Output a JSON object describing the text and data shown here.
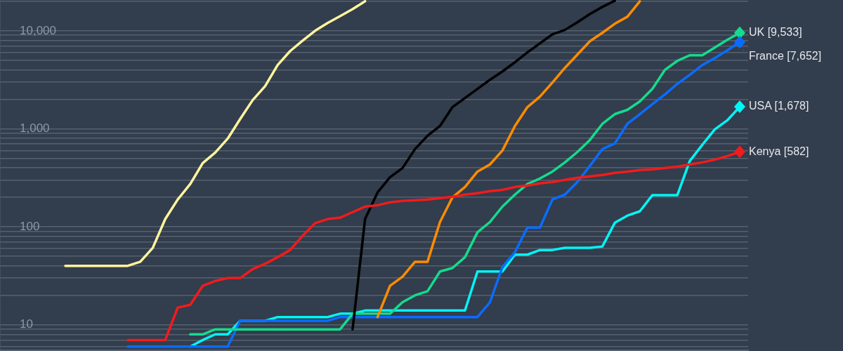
{
  "chart_data": {
    "type": "line",
    "log": true,
    "grid": "y",
    "tick_labels": "y",
    "line_style": "solid",
    "categories": [
      null,
      null,
      null,
      null,
      null,
      null,
      null,
      null,
      null,
      null,
      null,
      null,
      null,
      null,
      null,
      null,
      null,
      null,
      null,
      null,
      null,
      null,
      null,
      null,
      null,
      null,
      null,
      null,
      null,
      null,
      null,
      null,
      null,
      null,
      null,
      null,
      null,
      null,
      null,
      null,
      null,
      null,
      null,
      null,
      null,
      null,
      null,
      null,
      null,
      null,
      null,
      null,
      null,
      null,
      null
    ],
    "ylim": [
      5.5,
      20600
    ],
    "yticks": [
      {
        "value": 6,
        "label": null
      },
      {
        "value": 7,
        "label": null
      },
      {
        "value": 8,
        "label": null
      },
      {
        "value": 9,
        "label": null
      },
      10,
      {
        "value": 20,
        "label": null
      },
      {
        "value": 30,
        "label": null
      },
      {
        "value": 40,
        "label": null
      },
      {
        "value": 50,
        "label": null
      },
      {
        "value": 60,
        "label": null
      },
      {
        "value": 70,
        "label": null
      },
      {
        "value": 80,
        "label": null
      },
      {
        "value": 90,
        "label": null
      },
      100,
      {
        "value": 200,
        "label": null
      },
      {
        "value": 300,
        "label": null
      },
      {
        "value": 400,
        "label": null
      },
      {
        "value": 500,
        "label": null
      },
      {
        "value": 600,
        "label": null
      },
      {
        "value": 700,
        "label": null
      },
      {
        "value": 800,
        "label": null
      },
      {
        "value": 900,
        "label": null
      },
      {
        "value": 1000,
        "label": "1,000"
      },
      {
        "value": 2000,
        "label": null
      },
      {
        "value": 3000,
        "label": null
      },
      {
        "value": 4000,
        "label": null
      },
      {
        "value": 5000,
        "label": null
      },
      {
        "value": 6000,
        "label": null
      },
      {
        "value": 7000,
        "label": null
      },
      {
        "value": 8000,
        "label": null
      },
      {
        "value": 9000,
        "label": null
      },
      {
        "value": 10000,
        "label": "10,000"
      },
      {
        "value": 20000,
        "label": null
      }
    ],
    "series": [
      {
        "color": "#fff59d",
        "values": [
          40,
          40,
          40,
          40,
          40,
          40,
          44,
          61,
          120,
          190,
          273,
          446,
          571,
          794,
          1260,
          1960,
          2730,
          4470,
          6210,
          7940,
          10000,
          12000,
          14100,
          16600,
          20000,
          null,
          null,
          null,
          null,
          null,
          null,
          null,
          null,
          null,
          null,
          null,
          null,
          null,
          null,
          null,
          null,
          null,
          null,
          null,
          null,
          null,
          null,
          null,
          null,
          null,
          null,
          null,
          null,
          null,
          null
        ]
      },
      {
        "name": "Kenya [582]",
        "color": "#f21b1b",
        "values": [
          null,
          null,
          null,
          null,
          null,
          7,
          7,
          7,
          7,
          15,
          16,
          25,
          28,
          30,
          30,
          37,
          42,
          49,
          58,
          81,
          109,
          120,
          124,
          141,
          161,
          166,
          178,
          184,
          187,
          190,
          196,
          203,
          213,
          220,
          231,
          238,
          255,
          264,
          277,
          287,
          301,
          316,
          327,
          338,
          355,
          366,
          379,
          385,
          398,
          411,
          433,
          454,
          485,
          526,
          582
        ]
      },
      {
        "color": "#000000",
        "values": [
          null,
          null,
          null,
          null,
          null,
          null,
          null,
          null,
          null,
          null,
          null,
          null,
          null,
          null,
          null,
          null,
          null,
          null,
          null,
          null,
          null,
          null,
          null,
          9,
          120,
          224,
          321,
          398,
          621,
          849,
          1069,
          1664,
          2060,
          2550,
          3160,
          3850,
          4770,
          6010,
          7440,
          9210,
          10200,
          12200,
          14800,
          17500,
          20300,
          null,
          null,
          null,
          null,
          null,
          null,
          null,
          null,
          null,
          null
        ]
      },
      {
        "color": "#ff8c00",
        "values": [
          null,
          null,
          null,
          null,
          null,
          null,
          null,
          null,
          null,
          null,
          null,
          null,
          null,
          null,
          null,
          null,
          null,
          null,
          null,
          null,
          null,
          null,
          null,
          null,
          null,
          12,
          25,
          31,
          44,
          44,
          112,
          200,
          255,
          366,
          433,
          601,
          1069,
          1664,
          2130,
          2960,
          4180,
          5720,
          7810,
          9530,
          11800,
          13900,
          20000,
          null,
          null,
          null,
          null,
          null,
          null,
          null,
          null
        ]
      },
      {
        "name": "UK [9,533]",
        "color": "#14dc8c",
        "values": [
          null,
          null,
          null,
          null,
          null,
          null,
          null,
          null,
          null,
          null,
          8,
          8,
          9,
          9,
          9,
          9,
          9,
          9,
          9,
          9,
          9,
          9,
          9,
          13,
          13,
          13,
          13,
          17,
          20,
          22,
          35,
          38,
          49,
          88,
          112,
          161,
          213,
          273,
          311,
          366,
          454,
          580,
          769,
          1122,
          1413,
          1560,
          1900,
          2550,
          3980,
          4930,
          5620,
          5620,
          6740,
          8070,
          9533
        ]
      },
      {
        "name": "France [7,652]",
        "color": "#0a6cff",
        "values": [
          null,
          null,
          null,
          null,
          null,
          6,
          6,
          6,
          6,
          6,
          6,
          6,
          6,
          6,
          11,
          11,
          11,
          11,
          11,
          11,
          11,
          11,
          12,
          12,
          12,
          12,
          12,
          12,
          12,
          12,
          12,
          12,
          12,
          12,
          17,
          39,
          55,
          98,
          98,
          190,
          213,
          287,
          418,
          621,
          708,
          1122,
          1413,
          1780,
          2240,
          2870,
          3550,
          4470,
          5260,
          6310,
          7652
        ]
      },
      {
        "name": "USA [1,678]",
        "color": "#00f5f5",
        "values": [
          null,
          null,
          null,
          null,
          null,
          null,
          null,
          null,
          null,
          null,
          6,
          7,
          8,
          8,
          11,
          11,
          11,
          12,
          12,
          12,
          12,
          12,
          13,
          13,
          14,
          14,
          14,
          14,
          14,
          14,
          14,
          14,
          14,
          35,
          35,
          35,
          52,
          52,
          58,
          58,
          61,
          61,
          61,
          63,
          110,
          130,
          144,
          210,
          210,
          210,
          469,
          686,
          984,
          1219,
          1678
        ]
      }
    ]
  }
}
